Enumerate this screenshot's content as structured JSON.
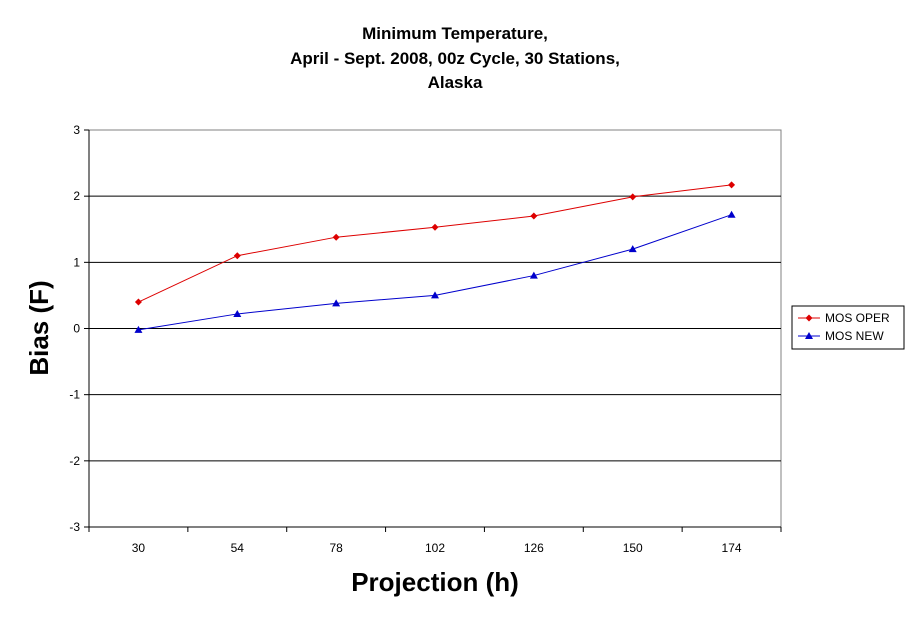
{
  "chart_data": {
    "type": "line",
    "title_lines": [
      "Minimum Temperature,",
      "April - Sept. 2008, 00z Cycle, 30 Stations,",
      "Alaska"
    ],
    "xlabel": "Projection (h)",
    "ylabel": "Bias (F)",
    "categories": [
      "30",
      "54",
      "78",
      "102",
      "126",
      "150",
      "174"
    ],
    "ylim": [
      -3,
      3
    ],
    "yticks": [
      "-3",
      "-2",
      "-1",
      "0",
      "1",
      "2",
      "3"
    ],
    "grid": "horizontal",
    "legend_position": "right",
    "series": [
      {
        "name": "MOS OPER",
        "color": "#dd0000",
        "marker": "diamond",
        "values": [
          0.4,
          1.1,
          1.38,
          1.53,
          1.7,
          1.99,
          2.17
        ]
      },
      {
        "name": "MOS NEW",
        "color": "#0000cc",
        "marker": "triangle",
        "values": [
          -0.02,
          0.22,
          0.38,
          0.5,
          0.8,
          1.2,
          1.72
        ]
      }
    ]
  }
}
